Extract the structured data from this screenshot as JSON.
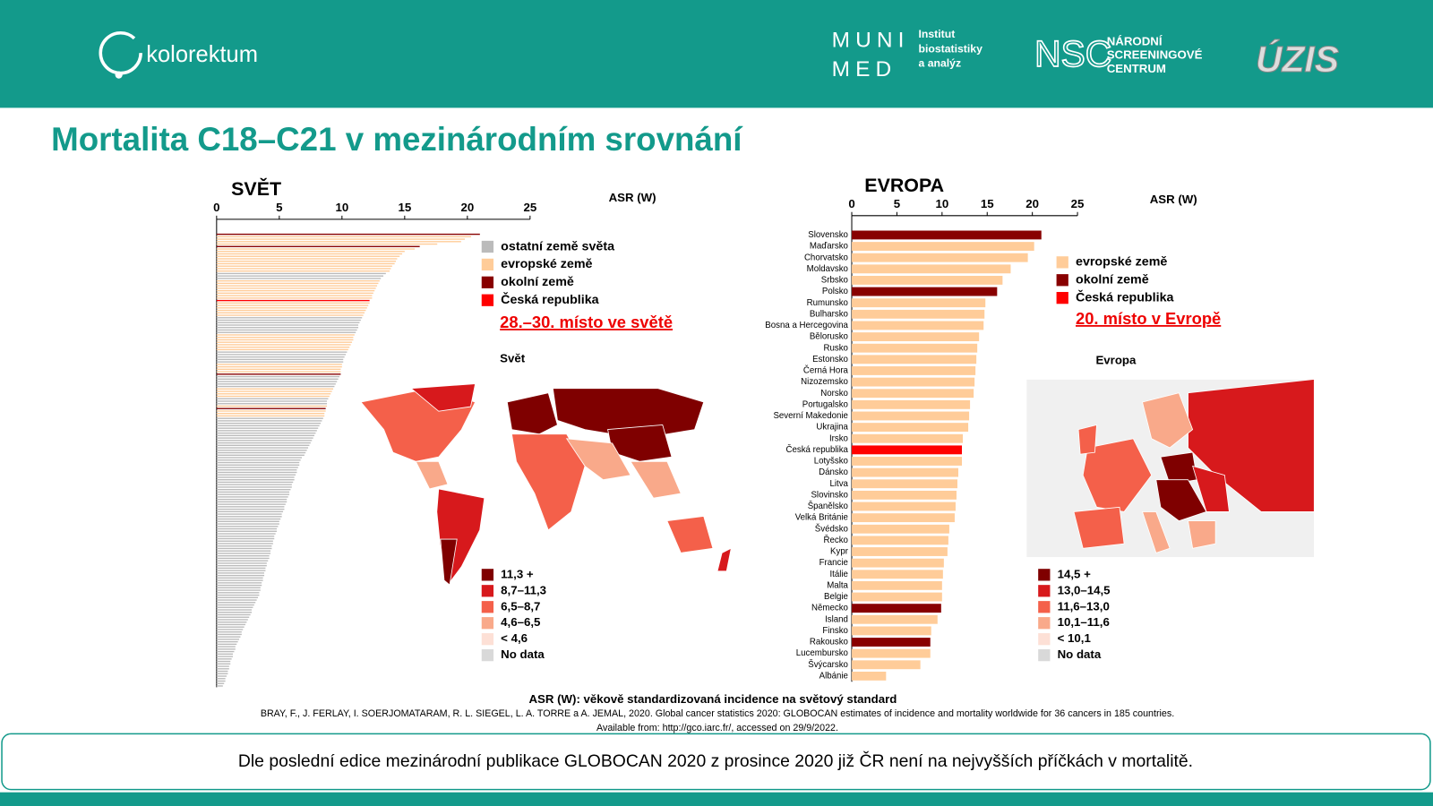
{
  "header": {
    "logo": "kolorektum",
    "muni": "MUNI",
    "med": "MED",
    "institute": [
      "Institut",
      "biostatistiky",
      "a analýz"
    ],
    "nsc": "NSC",
    "nsc_name": [
      "NÁRODNÍ",
      "SCREENINGOVÉ",
      "CENTRUM"
    ],
    "uzis": "ÚZIS"
  },
  "title": "Mortalita C18–C21 v mezinárodním srovnání",
  "footnote": {
    "definition": "ASR (W): věkově standardizovaná incidence na světový standard",
    "source": "BRAY, F., J. FERLAY, I. SOERJOMATARAM, R. L. SIEGEL, L. A. TORRE a A. JEMAL, 2020. Global cancer statistics 2020: GLOBOCAN estimates of incidence and mortality worldwide for 36 cancers in 185 countries.",
    "available": "Available from: http://gco.iarc.fr/, accessed on 29/9/2022."
  },
  "note": "Dle poslední edice mezinárodní publikace GLOBOCAN 2020 z prosince 2020 již ČR není na nejvyšších příčkách v mortalitě.",
  "chart_data": [
    {
      "type": "bar",
      "orientation": "horizontal",
      "title": "SVĚT",
      "axis_label": "ASR (W)",
      "xlim": [
        0,
        25
      ],
      "xticks": [
        0,
        5,
        10,
        15,
        20,
        25
      ],
      "values": [
        21,
        20.3,
        19.8,
        19.5,
        17.6,
        16.2,
        15.8,
        15,
        14.8,
        14.6,
        14.4,
        14.3,
        14.2,
        14,
        13.9,
        13.8,
        13.5,
        13.3,
        13.1,
        13,
        12.9,
        12.8,
        12.7,
        12.6,
        12.5,
        12.4,
        12.4,
        12.2,
        12.2,
        12.1,
        12,
        11.9,
        11.8,
        11.7,
        11.6,
        11.5,
        11.4,
        11.3,
        11.3,
        11.2,
        11.1,
        11,
        10.9,
        10.9,
        10.8,
        10.7,
        10.6,
        10.5,
        10.4,
        10.3,
        10.2,
        10.1,
        10.1,
        10,
        10,
        9.9,
        9.9,
        9.9,
        9.8,
        9.7,
        9.6,
        9.5,
        9.4,
        9.3,
        9.2,
        9.1,
        9.0,
        8.9,
        8.8,
        8.8,
        8.8,
        8.7,
        8.7,
        8.6,
        8.6,
        8.5,
        8.4,
        8.3,
        8.2,
        8.1,
        8.0,
        7.9,
        7.8,
        7.7,
        7.6,
        7.5,
        7.4,
        7.3,
        7.2,
        7.1,
        7.0,
        6.8,
        6.7,
        6.6,
        6.6,
        6.5,
        6.4,
        6.4,
        6.3,
        6.2,
        6.2,
        6.1,
        6.0,
        6.0,
        5.9,
        5.8,
        5.8,
        5.7,
        5.6,
        5.6,
        5.5,
        5.4,
        5.4,
        5.3,
        5.2,
        5.2,
        5.1,
        5.0,
        5.0,
        4.9,
        4.8,
        4.8,
        4.7,
        4.6,
        4.6,
        4.5,
        4.5,
        4.4,
        4.4,
        4.3,
        4.3,
        4.2,
        4.2,
        4.1,
        4.0,
        4.0,
        3.9,
        3.9,
        3.8,
        3.8,
        3.7,
        3.7,
        3.6,
        3.6,
        3.5,
        3.5,
        3.4,
        3.4,
        3.3,
        3.2,
        3.1,
        3.0,
        2.9,
        2.8,
        2.8,
        2.7,
        2.6,
        2.5,
        2.4,
        2.3,
        2.2,
        2.1,
        2.0,
        2.0,
        1.9,
        1.8,
        1.7,
        1.6,
        1.5,
        1.5,
        1.4,
        1.3,
        1.3,
        1.2,
        1.1,
        1.1,
        1.0,
        1.0,
        0.9,
        0.9,
        0.8,
        0.7,
        0.7,
        0.6,
        0.5
      ],
      "colors": [
        "#800",
        "#fc9",
        "#fc9",
        "#fc9",
        "#fc9",
        "#800",
        "#fc9",
        "#fc9",
        "#fc9",
        "#fc9",
        "#fc9",
        "#fc9",
        "#fc9",
        "#fc9",
        "#fc9",
        "#fc9",
        "#bbb",
        "#bbb",
        "#bbb",
        "#fc9",
        "#fc9",
        "#fc9",
        "#fc9",
        "#fc9",
        "#fc9",
        "#fc9",
        "#fc9",
        "#f00",
        "#fc9",
        "#fc9",
        "#fc9",
        "#fc9",
        "#fc9",
        "#fc9",
        "#bbb",
        "#bbb",
        "#bbb",
        "#bbb",
        "#bbb",
        "#bbb",
        "#bbb",
        "#fc9",
        "#fc9",
        "#fc9",
        "#fc9",
        "#fc9",
        "#fc9",
        "#fc9",
        "#bbb",
        "#bbb",
        "#bbb",
        "#bbb",
        "#bbb",
        "#fc9",
        "#fc9",
        "#fc9",
        "#fc9",
        "#800",
        "#bbb",
        "#bbb",
        "#bbb",
        "#bbb",
        "#bbb",
        "#fc9",
        "#fc9",
        "#fc9",
        "#fc9",
        "#bbb",
        "#bbb",
        "#bbb",
        "#fc9",
        "#800",
        "#fc9",
        "#fc9",
        "#fc9",
        "#bbb",
        "#bbb",
        "#bbb",
        "#bbb",
        "#bbb",
        "#bbb",
        "#bbb",
        "#bbb",
        "#bbb",
        "#bbb",
        "#bbb",
        "#bbb",
        "#bbb",
        "#bbb",
        "#bbb",
        "#bbb",
        "#bbb",
        "#bbb",
        "#bbb",
        "#bbb",
        "#bbb",
        "#bbb",
        "#bbb",
        "#bbb",
        "#bbb",
        "#bbb",
        "#bbb",
        "#bbb",
        "#bbb",
        "#bbb",
        "#bbb",
        "#bbb",
        "#bbb",
        "#bbb",
        "#bbb",
        "#bbb",
        "#bbb",
        "#bbb",
        "#bbb",
        "#bbb",
        "#bbb",
        "#bbb",
        "#bbb",
        "#bbb",
        "#bbb",
        "#bbb",
        "#bbb",
        "#bbb",
        "#bbb",
        "#bbb",
        "#bbb",
        "#bbb",
        "#bbb",
        "#bbb",
        "#bbb",
        "#bbb",
        "#bbb",
        "#bbb",
        "#bbb",
        "#bbb",
        "#bbb",
        "#bbb",
        "#bbb",
        "#bbb",
        "#bbb",
        "#bbb",
        "#bbb",
        "#bbb",
        "#bbb",
        "#bbb",
        "#bbb",
        "#bbb",
        "#bbb",
        "#bbb",
        "#bbb",
        "#bbb",
        "#bbb",
        "#bbb",
        "#bbb",
        "#bbb",
        "#bbb",
        "#bbb",
        "#bbb",
        "#bbb",
        "#bbb",
        "#bbb",
        "#bbb",
        "#bbb",
        "#bbb",
        "#bbb",
        "#bbb",
        "#bbb",
        "#bbb",
        "#bbb",
        "#bbb",
        "#bbb",
        "#bbb",
        "#bbb",
        "#bbb",
        "#bbb",
        "#bbb",
        "#bbb",
        "#bbb",
        "#bbb",
        "#bbb",
        "#bbb",
        "#bbb",
        "#bbb",
        "#bbb",
        "#bbb"
      ],
      "legend": [
        {
          "name": "ostatní země světa",
          "color": "#bbb"
        },
        {
          "name": "evropské země",
          "color": "#fc9"
        },
        {
          "name": "okolní země",
          "color": "#800"
        },
        {
          "name": "Česká republika",
          "color": "#f00"
        }
      ],
      "annotation": "28.–30. místo ve světě",
      "map": {
        "title": "Svět",
        "legend": [
          {
            "label": "11,3 +",
            "color": "#7f0000"
          },
          {
            "label": "8,7–11,3",
            "color": "#d7191c"
          },
          {
            "label": "6,5–8,7",
            "color": "#f4604a"
          },
          {
            "label": "4,6–6,5",
            "color": "#f9a98a"
          },
          {
            "label": "< 4,6",
            "color": "#fde0d6"
          },
          {
            "label": "No data",
            "color": "#d9d9d9"
          }
        ]
      }
    },
    {
      "type": "bar",
      "orientation": "horizontal",
      "title": "EVROPA",
      "axis_label": "ASR (W)",
      "xlim": [
        0,
        25
      ],
      "xticks": [
        0,
        5,
        10,
        15,
        20,
        25
      ],
      "categories": [
        "Slovensko",
        "Maďarsko",
        "Chorvatsko",
        "Moldavsko",
        "Srbsko",
        "Polsko",
        "Rumunsko",
        "Bulharsko",
        "Bosna a Hercegovina",
        "Bělorusko",
        "Rusko",
        "Estonsko",
        "Černá Hora",
        "Nizozemsko",
        "Norsko",
        "Portugalsko",
        "Severní Makedonie",
        "Ukrajina",
        "Irsko",
        "Česká republika",
        "Lotyšsko",
        "Dánsko",
        "Litva",
        "Slovinsko",
        "Španělsko",
        "Velká Británie",
        "Švédsko",
        "Řecko",
        "Kypr",
        "Francie",
        "Itálie",
        "Malta",
        "Belgie",
        "Německo",
        "Island",
        "Finsko",
        "Rakousko",
        "Lucembursko",
        "Švýcarsko",
        "Albánie"
      ],
      "values": [
        21.0,
        20.2,
        19.5,
        17.6,
        16.7,
        16.1,
        14.8,
        14.7,
        14.6,
        14.1,
        13.9,
        13.8,
        13.7,
        13.6,
        13.5,
        13.1,
        13.0,
        12.9,
        12.3,
        12.2,
        12.2,
        11.8,
        11.7,
        11.6,
        11.5,
        11.4,
        10.8,
        10.7,
        10.6,
        10.2,
        10.1,
        10.0,
        10.0,
        9.9,
        9.5,
        8.8,
        8.7,
        8.7,
        7.6,
        3.8
      ],
      "colors": [
        "#800",
        "#fc9",
        "#fc9",
        "#fc9",
        "#fc9",
        "#800",
        "#fc9",
        "#fc9",
        "#fc9",
        "#fc9",
        "#fc9",
        "#fc9",
        "#fc9",
        "#fc9",
        "#fc9",
        "#fc9",
        "#fc9",
        "#fc9",
        "#fc9",
        "#f00",
        "#fc9",
        "#fc9",
        "#fc9",
        "#fc9",
        "#fc9",
        "#fc9",
        "#fc9",
        "#fc9",
        "#fc9",
        "#fc9",
        "#fc9",
        "#fc9",
        "#fc9",
        "#800",
        "#fc9",
        "#fc9",
        "#800",
        "#fc9",
        "#fc9",
        "#fc9"
      ],
      "legend": [
        {
          "name": "evropské země",
          "color": "#fc9"
        },
        {
          "name": "okolní země",
          "color": "#800"
        },
        {
          "name": "Česká republika",
          "color": "#f00"
        }
      ],
      "annotation": "20. místo v Evropě",
      "map": {
        "title": "Evropa",
        "legend": [
          {
            "label": "14,5 +",
            "color": "#7f0000"
          },
          {
            "label": "13,0–14,5",
            "color": "#d7191c"
          },
          {
            "label": "11,6–13,0",
            "color": "#f4604a"
          },
          {
            "label": "10,1–11,6",
            "color": "#f9a98a"
          },
          {
            "label": "< 10,1",
            "color": "#fde0d6"
          },
          {
            "label": "No data",
            "color": "#d9d9d9"
          }
        ]
      }
    }
  ]
}
